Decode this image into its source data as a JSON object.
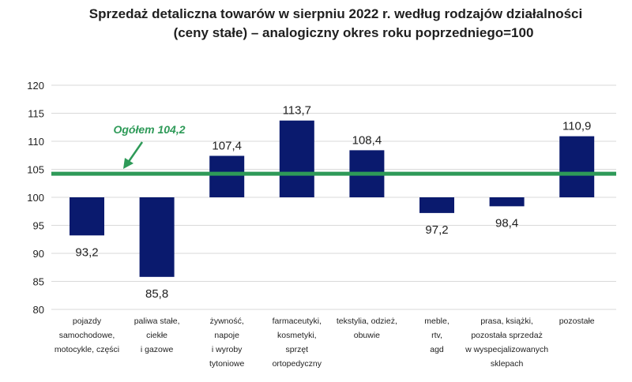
{
  "chart_data": {
    "type": "bar",
    "title": "Sprzedaż detaliczna towarów w sierpniu 2022 r. według rodzajów działalności",
    "subtitle": "(ceny stałe) – analogiczny okres roku poprzedniego=100",
    "baseline": 100,
    "ylim": [
      80,
      120
    ],
    "yticks": [
      80,
      85,
      90,
      95,
      100,
      105,
      110,
      115,
      120
    ],
    "grid": true,
    "categories": [
      [
        "pojazdy",
        "samochodowe,",
        "motocykle, części"
      ],
      [
        "paliwa stałe,",
        "ciekłe",
        "i gazowe"
      ],
      [
        "żywność,",
        "napoje",
        "i wyroby",
        "tytoniowe"
      ],
      [
        "farmaceutyki,",
        "kosmetyki,",
        "sprzęt",
        "ortopedyczny"
      ],
      [
        "tekstylia, odzież,",
        "obuwie"
      ],
      [
        "meble,",
        "rtv,",
        "agd"
      ],
      [
        "prasa, książki,",
        "pozostała sprzedaż",
        "w wyspecjalizowanych",
        "sklepach"
      ],
      [
        "pozostałe"
      ]
    ],
    "values": [
      93.2,
      85.8,
      107.4,
      113.7,
      108.4,
      97.2,
      98.4,
      110.9
    ],
    "value_labels": [
      "93,2",
      "85,8",
      "107,4",
      "113,7",
      "108,4",
      "97,2",
      "98,4",
      "110,9"
    ],
    "reference_line": {
      "value": 104.2,
      "label": "Ogółem 104,2"
    },
    "colors": {
      "bar": "#0a1a6e",
      "reference": "#2e9a58",
      "grid": "#d9d9d9",
      "text": "#1f1f1f"
    }
  }
}
